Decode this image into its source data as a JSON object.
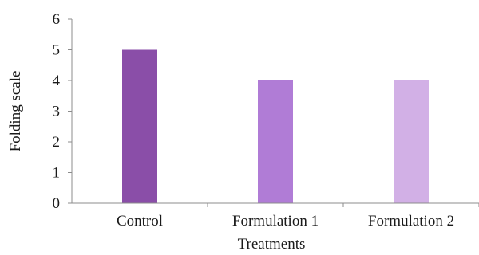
{
  "chart_data": {
    "type": "bar",
    "categories": [
      "Control",
      "Formulation 1",
      "Formulation 2"
    ],
    "values": [
      5,
      4,
      4
    ],
    "colors": [
      "#8a4ea8",
      "#b07cd6",
      "#d2b0e6"
    ],
    "title": "",
    "xlabel": "Treatments",
    "ylabel": "Folding scale",
    "ylim": [
      0,
      6
    ],
    "yticks": [
      "0",
      "1",
      "2",
      "3",
      "4",
      "5",
      "6"
    ],
    "grid": false,
    "legend": "none"
  }
}
